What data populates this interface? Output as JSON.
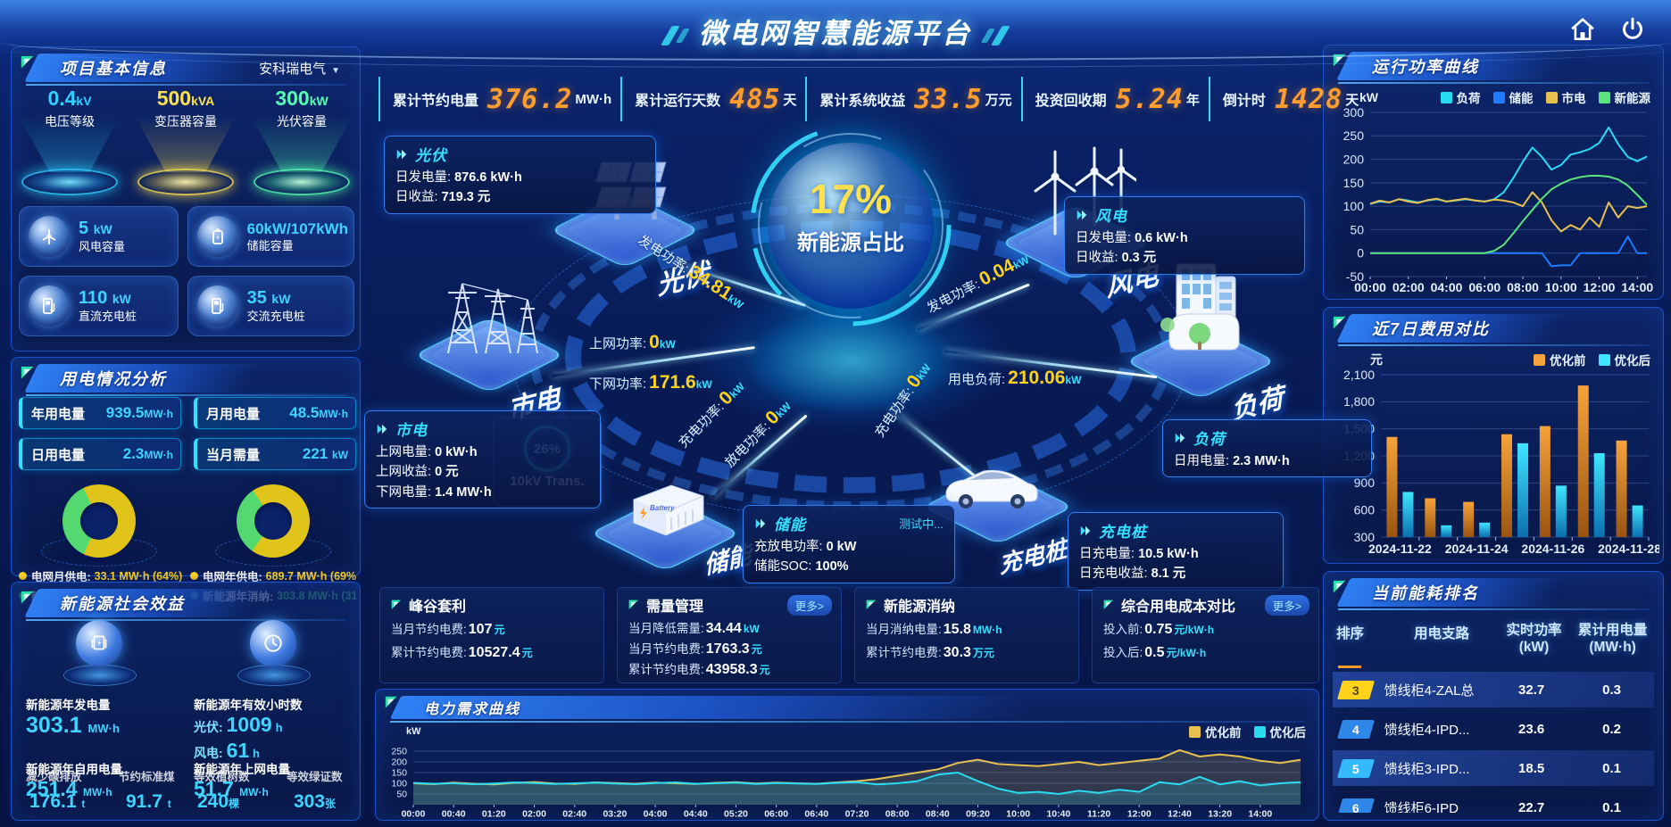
{
  "header": {
    "title": "微电网智慧能源平台"
  },
  "topbar": {
    "items": [
      {
        "label": "累计节约电量",
        "value": "376.2",
        "unit": "MW·h"
      },
      {
        "label": "累计运行天数",
        "value": "485",
        "unit": "天"
      },
      {
        "label": "累计系统收益",
        "value": "33.5",
        "unit": "万元"
      },
      {
        "label": "投资回收期",
        "value": "5.24",
        "unit": "年"
      },
      {
        "label": "倒计时",
        "value": "1428",
        "unit": "天"
      }
    ]
  },
  "project": {
    "title": "项目基本信息",
    "company": "安科瑞电气",
    "pedestals": [
      {
        "value": "0.4",
        "unit": "kV",
        "label": "电压等级",
        "color": "#2fd0ff"
      },
      {
        "value": "500",
        "unit": "kVA",
        "label": "变压器容量",
        "color": "#ffe14d"
      },
      {
        "value": "300",
        "unit": "kW",
        "label": "光伏容量",
        "color": "#54ffb0"
      }
    ],
    "capsules": [
      {
        "value": "5",
        "unit": "kW",
        "label": "风电容量"
      },
      {
        "value": "60kW/107kWh",
        "unit": "",
        "label": "储能容量"
      },
      {
        "value": "110",
        "unit": "kW",
        "label": "直流充电桩"
      },
      {
        "value": "35",
        "unit": "kW",
        "label": "交流充电桩"
      }
    ]
  },
  "usage": {
    "title": "用电情况分析",
    "pills": [
      {
        "label": "年用电量",
        "value": "939.5",
        "unit": "MW·h"
      },
      {
        "label": "月用电量",
        "value": "48.5",
        "unit": "MW·h"
      },
      {
        "label": "日用电量",
        "value": "2.3",
        "unit": "MW·h"
      },
      {
        "label": "当月需量",
        "value": "221",
        "unit": "kW"
      }
    ],
    "legend": [
      {
        "label": "电网月供电:",
        "value": "33.1 MW·h (64%)",
        "color": "#ffd21c"
      },
      {
        "label": "电网年供电:",
        "value": "689.7 MW·h (69%)",
        "color": "#ffd21c"
      },
      {
        "label": "新能源月消纳:",
        "value": "19 MW·h (36%)",
        "color": "#4fe07c"
      },
      {
        "label": "新能源年消纳:",
        "value": "303.8 MW·h (31%)",
        "color": "#4fe07c"
      }
    ]
  },
  "benefit": {
    "title": "新能源社会效益",
    "gen": {
      "label": "新能源年发电量",
      "value": "303.1",
      "unit": "MW·h"
    },
    "hours": {
      "label": "新能源年有效小时数",
      "pv_label": "光伏:",
      "pv_value": "1009",
      "pv_unit": "h",
      "wind_label": "风电:",
      "wind_value": "61",
      "wind_unit": "h"
    },
    "self": {
      "label": "新能源年自用电量",
      "value": "251.4",
      "unit": "MW·h"
    },
    "export": {
      "label": "新能源年上网电量",
      "value": "51.7",
      "unit": "MW·h"
    },
    "co2": {
      "label": "减少碳排放",
      "value": "176.1",
      "unit": "t"
    },
    "coal": {
      "label": "节约标准煤",
      "value": "91.7",
      "unit": "t"
    },
    "trees": {
      "label": "等效植树数",
      "value": "240",
      "unit": "棵"
    },
    "certs": {
      "label": "等效绿证数",
      "value": "303",
      "unit": "张"
    }
  },
  "diagram": {
    "center_pct": "17%",
    "center_label": "新能源占比",
    "nodes": {
      "solar": "光伏",
      "wind": "风电",
      "grid": "市电",
      "load": "负荷",
      "storage": "储能",
      "charger": "充电桩"
    },
    "flows": [
      {
        "label": "发电功率:",
        "value": "34.81",
        "unit": "kW"
      },
      {
        "label": "上网功率:",
        "value": "0",
        "unit": "kW"
      },
      {
        "label": "下网功率:",
        "value": "171.6",
        "unit": "kW"
      },
      {
        "label": "发电功率:",
        "value": "0.04",
        "unit": "kW"
      },
      {
        "label": "用电负荷:",
        "value": "210.06",
        "unit": "kW"
      },
      {
        "label": "充电功率:",
        "value": "0",
        "unit": "kW"
      },
      {
        "label": "放电功率:",
        "value": "0",
        "unit": "kW"
      },
      {
        "label": "充电功率:",
        "value": "0",
        "unit": "kW"
      }
    ],
    "transformer": {
      "pct": "26%",
      "label": "10kV Trans."
    },
    "boxes": {
      "solar": {
        "title": "光伏",
        "rows": [
          {
            "label": "日发电量:",
            "value": "876.6 kW·h"
          },
          {
            "label": "日收益:",
            "value": "719.3 元"
          }
        ]
      },
      "grid": {
        "title": "市电",
        "rows": [
          {
            "label": "上网电量:",
            "value": "0 kW·h"
          },
          {
            "label": "上网收益:",
            "value": "0 元"
          },
          {
            "label": "下网电量:",
            "value": "1.4 MW·h"
          }
        ]
      },
      "wind": {
        "title": "风电",
        "rows": [
          {
            "label": "日发电量:",
            "value": "0.6 kW·h"
          },
          {
            "label": "日收益:",
            "value": "0.3 元"
          }
        ]
      },
      "load": {
        "title": "负荷",
        "rows": [
          {
            "label": "日用电量:",
            "value": "2.3 MW·h"
          }
        ]
      },
      "storage": {
        "title": "储能",
        "badge": "测试中...",
        "rows": [
          {
            "label": "充放电功率:",
            "value": "0 kW"
          },
          {
            "label": "储能SOC:",
            "value": "100%"
          }
        ]
      },
      "charger": {
        "title": "充电桩",
        "rows": [
          {
            "label": "日充电量:",
            "value": "10.5 kW·h"
          },
          {
            "label": "日充电收益:",
            "value": "8.1 元"
          }
        ]
      }
    }
  },
  "cards": [
    {
      "title": "峰谷套利",
      "more": "",
      "rows": [
        {
          "label": "当月节约电费:",
          "value": "107",
          "unit": "元"
        },
        {
          "label": "累计节约电费:",
          "value": "10527.4",
          "unit": "元"
        }
      ]
    },
    {
      "title": "需量管理",
      "more": "更多>",
      "rows": [
        {
          "label": "当月降低需量:",
          "value": "34.44",
          "unit": "kW"
        },
        {
          "label": "当月节约电费:",
          "value": "1763.3",
          "unit": "元"
        },
        {
          "label": "累计节约电费:",
          "value": "43958.3",
          "unit": "元"
        }
      ]
    },
    {
      "title": "新能源消纳",
      "more": "",
      "rows": [
        {
          "label": "当月消纳电量:",
          "value": "15.8",
          "unit": "MW·h"
        },
        {
          "label": "累计节约电费:",
          "value": "30.3",
          "unit": "万元"
        }
      ]
    },
    {
      "title": "综合用电成本对比",
      "more": "更多>",
      "rows": [
        {
          "label": "投入前:",
          "value": "0.75",
          "unit": "元/kW·h"
        },
        {
          "label": "投入后:",
          "value": "0.5",
          "unit": "元/kW·h"
        }
      ]
    }
  ],
  "titles": {
    "run_power": "运行功率曲线",
    "cost7": "近7日费用对比",
    "ranking": "当前能耗排名",
    "demand": "电力需求曲线"
  },
  "ranking": {
    "columns": [
      "排序",
      "用电支路",
      "实时功率",
      "(kW)",
      "累计用电量",
      "(MW·h)"
    ],
    "rows": [
      {
        "rank": "3",
        "branch": "馈线柜4-ZAL总",
        "power": "32.7",
        "energy": "0.3"
      },
      {
        "rank": "4",
        "branch": "馈线柜4-IPD...",
        "power": "23.6",
        "energy": "0.2"
      },
      {
        "rank": "5",
        "branch": "馈线柜3-IPD...",
        "power": "18.5",
        "energy": "0.1"
      },
      {
        "rank": "6",
        "branch": "馈线柜6-IPD",
        "power": "22.7",
        "energy": "0.1"
      }
    ]
  },
  "chart_data": [
    {
      "id": "run_power",
      "type": "line",
      "title": "运行功率曲线",
      "ylabel": "kW",
      "ylim": [
        -50,
        300
      ],
      "grid": true,
      "legend_position": "top",
      "yticks": [
        {
          "v": -50,
          "l": "-50"
        },
        {
          "v": 0,
          "l": "0"
        },
        {
          "v": 50,
          "l": "50"
        },
        {
          "v": 100,
          "l": "100"
        },
        {
          "v": 150,
          "l": "150"
        },
        {
          "v": 200,
          "l": "200"
        },
        {
          "v": 250,
          "l": "250"
        },
        {
          "v": 300,
          "l": "300"
        }
      ],
      "x_range": [
        0,
        14.5
      ],
      "xticks": [
        {
          "v": 0,
          "l": "00:00"
        },
        {
          "v": 2,
          "l": "02:00"
        },
        {
          "v": 4,
          "l": "04:00"
        },
        {
          "v": 6,
          "l": "06:00"
        },
        {
          "v": 8,
          "l": "08:00"
        },
        {
          "v": 10,
          "l": "10:00"
        },
        {
          "v": 12,
          "l": "12:00"
        },
        {
          "v": 14,
          "l": "14:00"
        }
      ],
      "fs": 14,
      "series": [
        {
          "name": "负荷",
          "color": "#29dcf2",
          "values": [
            105,
            110,
            108,
            115,
            112,
            108,
            112,
            115,
            110,
            112,
            115,
            112,
            110,
            115,
            130,
            160,
            195,
            225,
            205,
            178,
            188,
            210,
            215,
            222,
            235,
            268,
            232,
            205,
            196,
            206
          ]
        },
        {
          "name": "储能",
          "color": "#1f7bff",
          "values": [
            0,
            0,
            0,
            0,
            0,
            0,
            0,
            0,
            0,
            0,
            0,
            0,
            0,
            0,
            0,
            0,
            0,
            0,
            0,
            -28,
            -26,
            -26,
            0,
            0,
            0,
            0,
            0,
            35,
            0,
            0
          ]
        },
        {
          "name": "市电",
          "color": "#e8c04f",
          "values": [
            105,
            112,
            108,
            115,
            110,
            107,
            113,
            116,
            110,
            113,
            116,
            112,
            110,
            114,
            112,
            108,
            100,
            130,
            108,
            70,
            46,
            60,
            50,
            76,
            56,
            108,
            76,
            100,
            96,
            100
          ]
        },
        {
          "name": "新能源",
          "color": "#5be37c",
          "values": [
            0,
            0,
            0,
            0,
            0,
            0,
            0,
            0,
            0,
            0,
            0,
            0,
            0,
            5,
            18,
            42,
            68,
            92,
            116,
            136,
            148,
            157,
            162,
            165,
            165,
            163,
            157,
            144,
            124,
            103
          ]
        }
      ]
    },
    {
      "id": "cost7",
      "type": "bar",
      "title": "近7日费用对比",
      "ylabel": "元",
      "ylim": [
        300,
        2100
      ],
      "grid": true,
      "legend_position": "top",
      "yticks": [
        {
          "v": 300,
          "l": "300"
        },
        {
          "v": 600,
          "l": "600"
        },
        {
          "v": 900,
          "l": "900"
        },
        {
          "v": 1200,
          "l": "1,200"
        },
        {
          "v": 1500,
          "l": "1,500"
        },
        {
          "v": 1800,
          "l": "1,800"
        },
        {
          "v": 2100,
          "l": "2,100"
        }
      ],
      "categories": [
        "2024-11-22",
        "2024-11-23",
        "2024-11-24",
        "2024-11-25",
        "2024-11-26",
        "2024-11-27",
        "2024-11-28"
      ],
      "xtick_indices": [
        0,
        2,
        4,
        6
      ],
      "fs": 14,
      "series": [
        {
          "name": "优化前",
          "colors": [
            "#f7a33b",
            "#9a5410"
          ],
          "values": [
            1410,
            730,
            690,
            1440,
            1530,
            1980,
            1370
          ]
        },
        {
          "name": "优化后",
          "colors": [
            "#3fe6ff",
            "#0b6fb0"
          ],
          "values": [
            800,
            430,
            460,
            1340,
            870,
            1230,
            650
          ]
        }
      ]
    },
    {
      "id": "demand",
      "type": "line",
      "title": "电力需求曲线",
      "ylabel": "kW",
      "ylim": [
        0,
        300
      ],
      "grid": true,
      "legend_position": "top-right",
      "yticks": [
        {
          "v": 50,
          "l": "50"
        },
        {
          "v": 100,
          "l": "100"
        },
        {
          "v": 150,
          "l": "150"
        },
        {
          "v": 200,
          "l": "200"
        },
        {
          "v": 250,
          "l": "250"
        }
      ],
      "x_range": [
        0,
        44
      ],
      "xticks": [
        {
          "v": 0,
          "l": "00:00"
        },
        {
          "v": 2,
          "l": "00:40"
        },
        {
          "v": 4,
          "l": "01:20"
        },
        {
          "v": 6,
          "l": "02:00"
        },
        {
          "v": 8,
          "l": "02:40"
        },
        {
          "v": 10,
          "l": "03:20"
        },
        {
          "v": 12,
          "l": "04:00"
        },
        {
          "v": 14,
          "l": "04:40"
        },
        {
          "v": 16,
          "l": "05:20"
        },
        {
          "v": 18,
          "l": "06:00"
        },
        {
          "v": 20,
          "l": "06:40"
        },
        {
          "v": 22,
          "l": "07:20"
        },
        {
          "v": 24,
          "l": "08:00"
        },
        {
          "v": 26,
          "l": "08:40"
        },
        {
          "v": 28,
          "l": "09:20"
        },
        {
          "v": 30,
          "l": "10:00"
        },
        {
          "v": 32,
          "l": "10:40"
        },
        {
          "v": 34,
          "l": "11:20"
        },
        {
          "v": 36,
          "l": "12:00"
        },
        {
          "v": 38,
          "l": "12:40"
        },
        {
          "v": 40,
          "l": "13:20"
        },
        {
          "v": 42,
          "l": "14:00"
        }
      ],
      "fs": 10.5,
      "series": [
        {
          "name": "优化前",
          "color": "#e8c04f",
          "fill": true,
          "values": [
            100,
            96,
            103,
            98,
            95,
            102,
            106,
            99,
            97,
            104,
            101,
            98,
            103,
            100,
            97,
            102,
            105,
            99,
            103,
            100,
            98,
            104,
            110,
            120,
            135,
            150,
            165,
            195,
            210,
            190,
            185,
            180,
            190,
            200,
            185,
            195,
            205,
            215,
            255,
            225,
            235,
            225,
            205,
            195,
            210
          ]
        },
        {
          "name": "优化后",
          "color": "#29dcf2",
          "fill": true,
          "values": [
            102,
            98,
            100,
            96,
            99,
            104,
            101,
            97,
            100,
            103,
            99,
            96,
            101,
            104,
            98,
            100,
            103,
            97,
            101,
            99,
            97,
            102,
            105,
            95,
            100,
            110,
            140,
            150,
            110,
            75,
            55,
            60,
            50,
            65,
            55,
            70,
            60,
            105,
            95,
            130,
            95,
            110,
            90,
            100,
            105
          ]
        }
      ]
    },
    {
      "id": "donut_month",
      "type": "pie",
      "labels": [
        "电网月供电",
        "新能源月消纳"
      ],
      "values": [
        64,
        36
      ],
      "colors": [
        "#e0c419",
        "#53d96f"
      ],
      "from": 205
    },
    {
      "id": "donut_year",
      "type": "pie",
      "labels": [
        "电网年供电",
        "新能源年消纳"
      ],
      "values": [
        69,
        31
      ],
      "colors": [
        "#e0c419",
        "#53d96f"
      ],
      "from": 215
    }
  ]
}
